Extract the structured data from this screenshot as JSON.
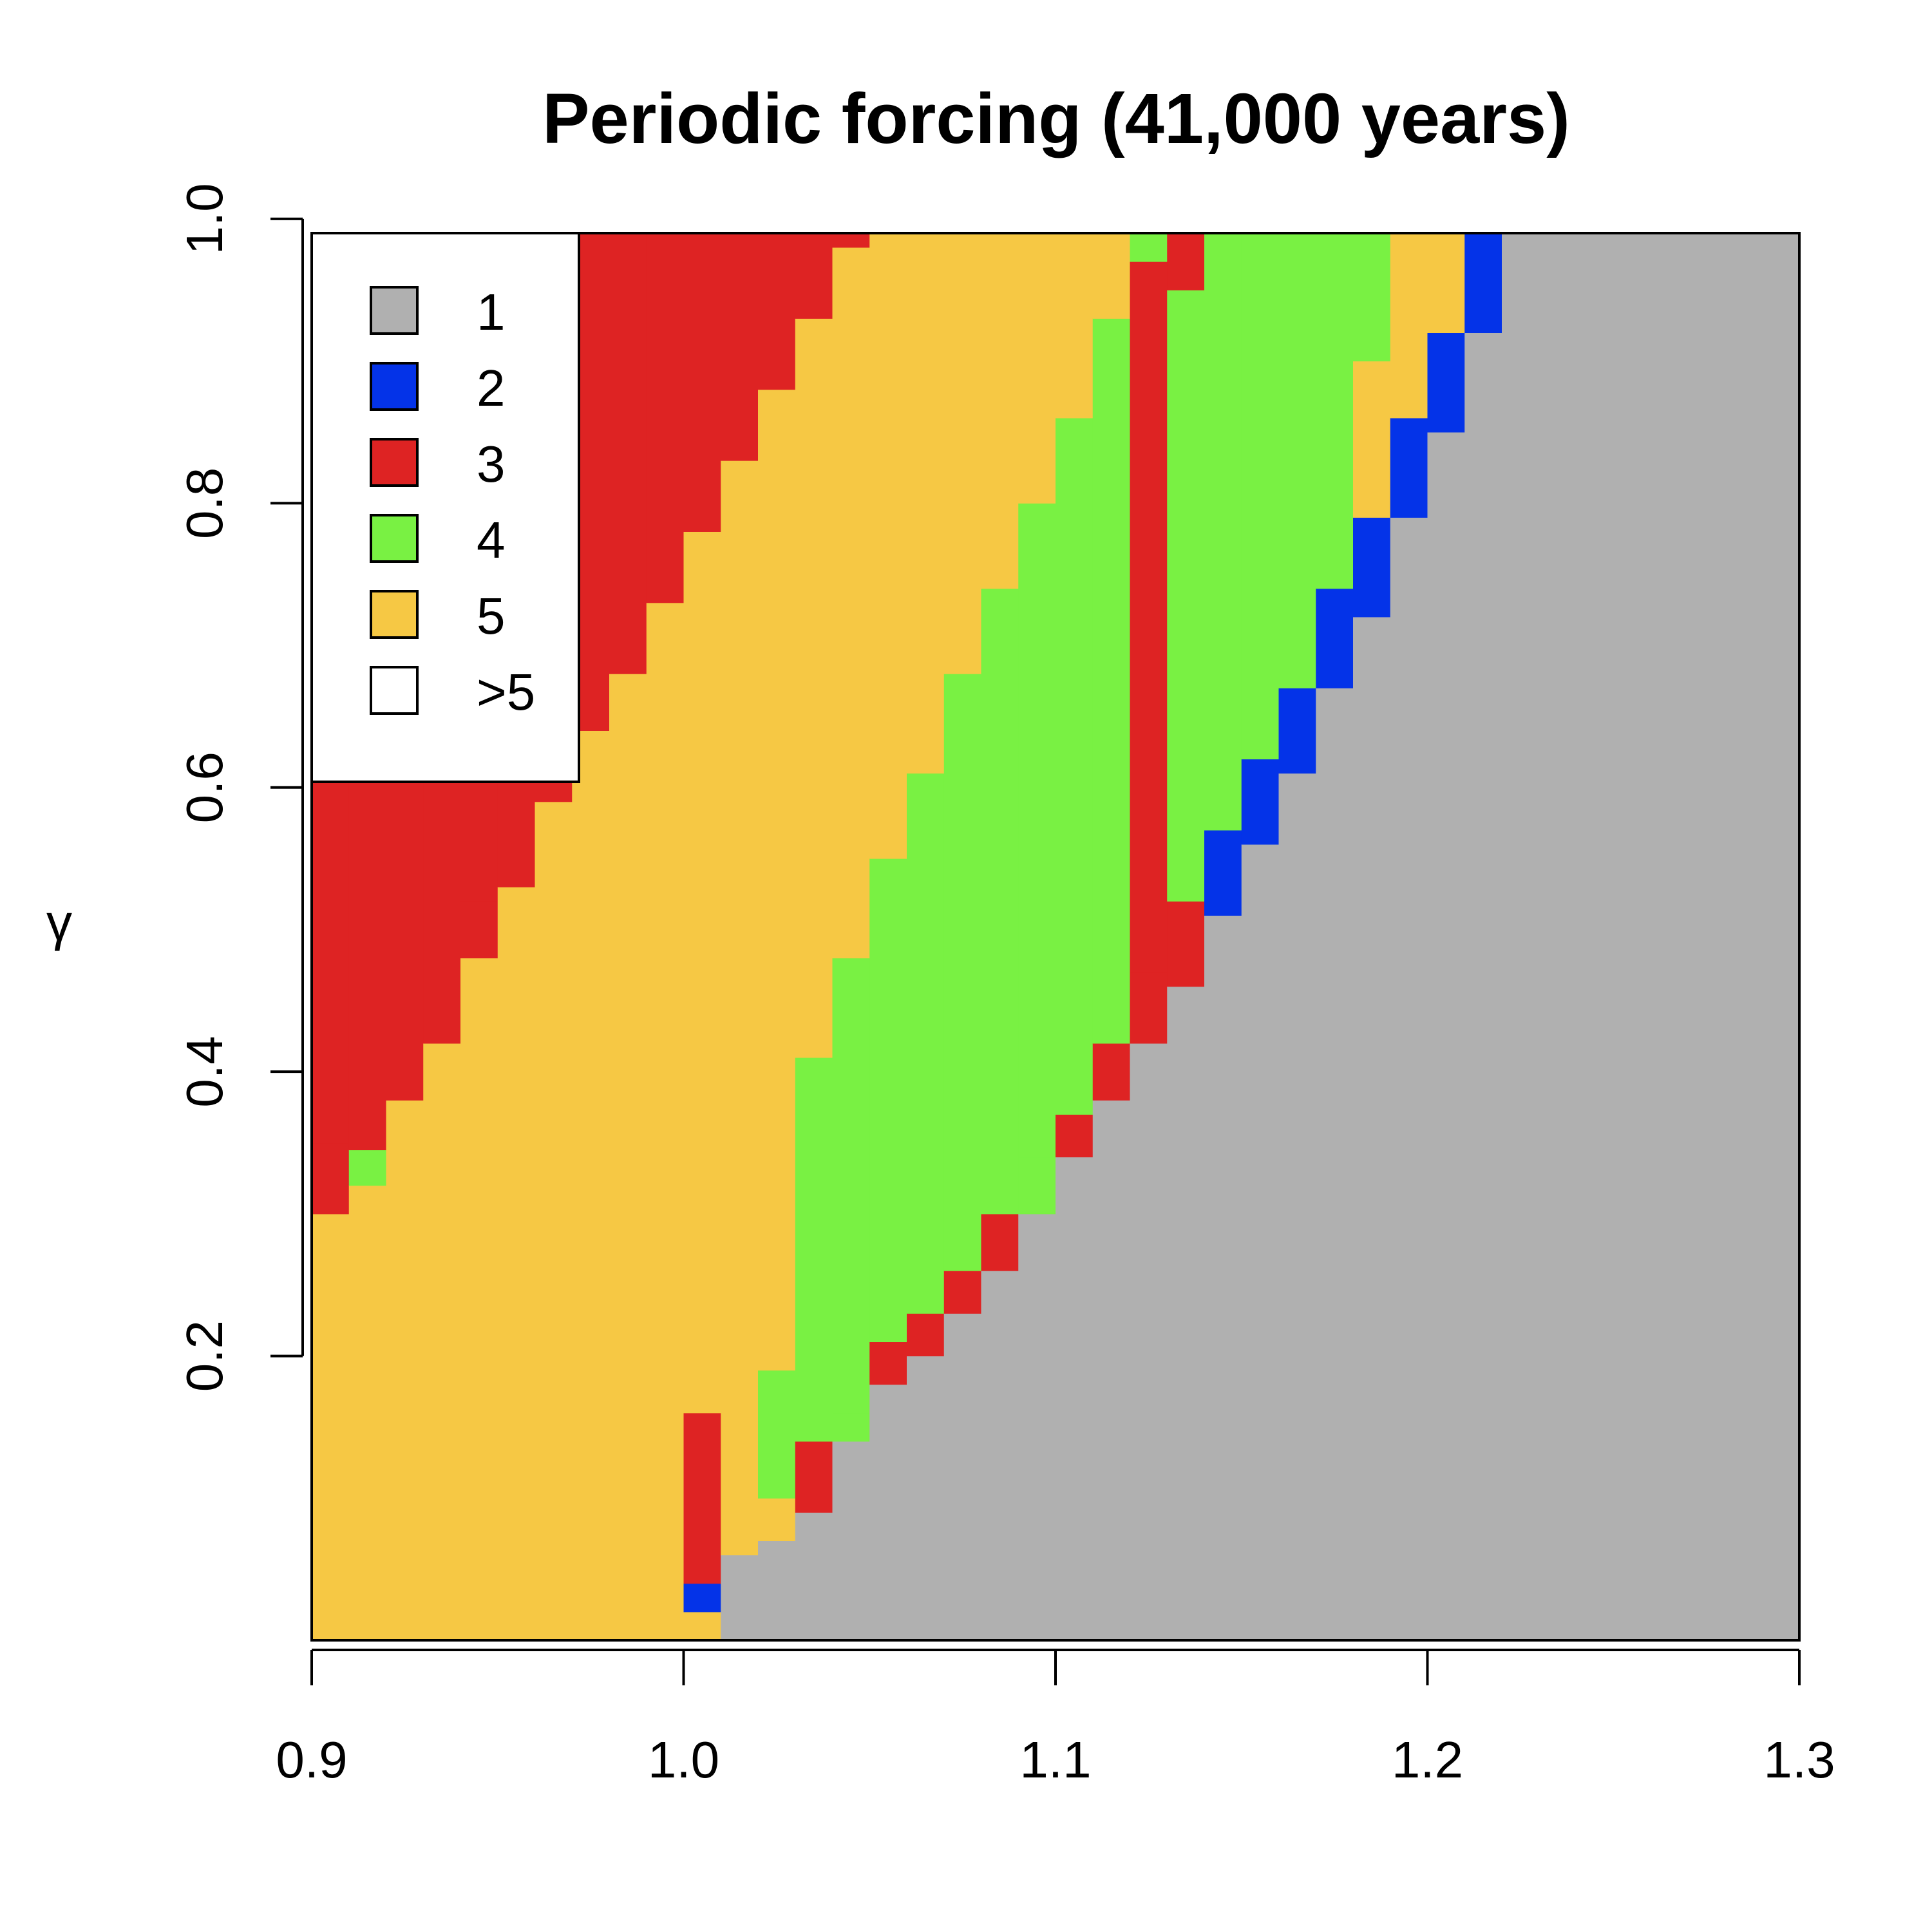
{
  "chart_data": {
    "type": "heatmap",
    "title": "Periodic forcing (41,000 years)",
    "xlabel": "",
    "ylabel": "γ",
    "xlim": [
      0.9,
      1.3
    ],
    "ylim": [
      0.0,
      1.0
    ],
    "x_ticks": [
      "0.9",
      "1.0",
      "1.1",
      "1.2",
      "1.3"
    ],
    "y_ticks": [
      "0.2",
      "0.4",
      "0.6",
      "0.8",
      "1.0"
    ],
    "legend_position": "top-left",
    "legend": [
      {
        "label": "1",
        "color": "#b0b0b0"
      },
      {
        "label": "2",
        "color": "#0433e8"
      },
      {
        "label": "3",
        "color": "#de2323"
      },
      {
        "label": "4",
        "color": "#79f143"
      },
      {
        "label": "5",
        "color": "#f6c844"
      },
      {
        "label": ">5",
        "color": "#ffffff"
      }
    ],
    "column_width": 0.01,
    "columns": [
      {
        "x": 0.9,
        "bands": [
          [
            0.0,
            0.3,
            5
          ],
          [
            0.3,
            0.35,
            3
          ],
          [
            0.35,
            1.0,
            3
          ]
        ]
      },
      {
        "x": 0.91,
        "bands": [
          [
            0.0,
            0.32,
            5
          ],
          [
            0.32,
            0.345,
            4
          ],
          [
            0.345,
            1.0,
            3
          ]
        ]
      },
      {
        "x": 0.92,
        "bands": [
          [
            0.0,
            0.38,
            5
          ],
          [
            0.38,
            0.39,
            3
          ],
          [
            0.39,
            1.0,
            3
          ]
        ]
      },
      {
        "x": 0.93,
        "bands": [
          [
            0.0,
            0.42,
            5
          ],
          [
            0.42,
            0.46,
            3
          ],
          [
            0.46,
            1.0,
            3
          ]
        ]
      },
      {
        "x": 0.94,
        "bands": [
          [
            0.0,
            0.48,
            5
          ],
          [
            0.48,
            0.52,
            3
          ],
          [
            0.52,
            1.0,
            3
          ]
        ]
      },
      {
        "x": 0.95,
        "bands": [
          [
            0.0,
            0.53,
            5
          ],
          [
            0.53,
            1.0,
            3
          ]
        ]
      },
      {
        "x": 0.96,
        "bands": [
          [
            0.0,
            0.59,
            5
          ],
          [
            0.59,
            1.0,
            3
          ]
        ]
      },
      {
        "x": 0.97,
        "bands": [
          [
            0.0,
            0.64,
            5
          ],
          [
            0.64,
            1.0,
            3
          ]
        ]
      },
      {
        "x": 0.98,
        "bands": [
          [
            0.0,
            0.68,
            5
          ],
          [
            0.68,
            1.0,
            3
          ]
        ]
      },
      {
        "x": 0.99,
        "bands": [
          [
            0.0,
            0.73,
            5
          ],
          [
            0.73,
            1.0,
            3
          ]
        ]
      },
      {
        "x": 1.0,
        "bands": [
          [
            0.0,
            0.02,
            5
          ],
          [
            0.02,
            0.04,
            2
          ],
          [
            0.04,
            0.16,
            3
          ],
          [
            0.16,
            0.78,
            5
          ],
          [
            0.78,
            1.0,
            3
          ]
        ]
      },
      {
        "x": 1.01,
        "bands": [
          [
            0.0,
            0.06,
            1
          ],
          [
            0.06,
            0.83,
            5
          ],
          [
            0.83,
            1.0,
            3
          ]
        ]
      },
      {
        "x": 1.02,
        "bands": [
          [
            0.0,
            0.07,
            1
          ],
          [
            0.07,
            0.1,
            5
          ],
          [
            0.1,
            0.19,
            4
          ],
          [
            0.19,
            0.35,
            5
          ],
          [
            0.35,
            0.88,
            5
          ],
          [
            0.88,
            1.0,
            3
          ]
        ]
      },
      {
        "x": 1.03,
        "bands": [
          [
            0.0,
            0.09,
            1
          ],
          [
            0.09,
            0.14,
            3
          ],
          [
            0.14,
            0.41,
            4
          ],
          [
            0.41,
            0.43,
            5
          ],
          [
            0.43,
            0.93,
            5
          ],
          [
            0.93,
            1.0,
            3
          ]
        ]
      },
      {
        "x": 1.04,
        "bands": [
          [
            0.0,
            0.14,
            1
          ],
          [
            0.14,
            0.16,
            4
          ],
          [
            0.16,
            0.48,
            4
          ],
          [
            0.48,
            0.5,
            5
          ],
          [
            0.5,
            0.98,
            5
          ],
          [
            0.98,
            1.0,
            3
          ]
        ]
      },
      {
        "x": 1.05,
        "bands": [
          [
            0.0,
            0.18,
            1
          ],
          [
            0.18,
            0.21,
            3
          ],
          [
            0.21,
            0.55,
            4
          ],
          [
            0.55,
            0.57,
            5
          ],
          [
            0.57,
            1.0,
            5
          ]
        ]
      },
      {
        "x": 1.06,
        "bands": [
          [
            0.0,
            0.2,
            1
          ],
          [
            0.2,
            0.23,
            3
          ],
          [
            0.23,
            0.61,
            4
          ],
          [
            0.61,
            0.63,
            5
          ],
          [
            0.63,
            1.0,
            5
          ]
        ]
      },
      {
        "x": 1.07,
        "bands": [
          [
            0.0,
            0.23,
            1
          ],
          [
            0.23,
            0.26,
            3
          ],
          [
            0.26,
            0.68,
            4
          ],
          [
            0.68,
            0.7,
            5
          ],
          [
            0.7,
            1.0,
            5
          ]
        ]
      },
      {
        "x": 1.08,
        "bands": [
          [
            0.0,
            0.26,
            1
          ],
          [
            0.26,
            0.3,
            3
          ],
          [
            0.3,
            0.74,
            4
          ],
          [
            0.74,
            0.76,
            5
          ],
          [
            0.76,
            1.0,
            5
          ]
        ]
      },
      {
        "x": 1.09,
        "bands": [
          [
            0.0,
            0.3,
            1
          ],
          [
            0.3,
            0.34,
            4
          ],
          [
            0.34,
            0.8,
            4
          ],
          [
            0.8,
            0.82,
            5
          ],
          [
            0.82,
            1.0,
            5
          ]
        ]
      },
      {
        "x": 1.1,
        "bands": [
          [
            0.0,
            0.34,
            1
          ],
          [
            0.34,
            0.37,
            3
          ],
          [
            0.37,
            0.86,
            4
          ],
          [
            0.86,
            0.88,
            5
          ],
          [
            0.88,
            1.0,
            5
          ]
        ]
      },
      {
        "x": 1.11,
        "bands": [
          [
            0.0,
            0.38,
            1
          ],
          [
            0.38,
            0.42,
            3
          ],
          [
            0.42,
            0.93,
            4
          ],
          [
            0.93,
            0.95,
            5
          ],
          [
            0.95,
            1.0,
            5
          ]
        ]
      },
      {
        "x": 1.12,
        "bands": [
          [
            0.0,
            0.42,
            1
          ],
          [
            0.42,
            0.47,
            3
          ],
          [
            0.47,
            0.97,
            3
          ],
          [
            0.97,
            1.0,
            4
          ]
        ]
      },
      {
        "x": 1.13,
        "bands": [
          [
            0.0,
            0.46,
            1
          ],
          [
            0.46,
            0.52,
            3
          ],
          [
            0.52,
            0.95,
            4
          ],
          [
            0.95,
            1.0,
            3
          ]
        ]
      },
      {
        "x": 1.14,
        "bands": [
          [
            0.0,
            0.51,
            1
          ],
          [
            0.51,
            0.57,
            2
          ],
          [
            0.57,
            1.0,
            4
          ]
        ]
      },
      {
        "x": 1.15,
        "bands": [
          [
            0.0,
            0.56,
            1
          ],
          [
            0.56,
            0.62,
            2
          ],
          [
            0.62,
            1.0,
            4
          ]
        ]
      },
      {
        "x": 1.16,
        "bands": [
          [
            0.0,
            0.61,
            1
          ],
          [
            0.61,
            0.67,
            2
          ],
          [
            0.67,
            1.0,
            4
          ]
        ]
      },
      {
        "x": 1.17,
        "bands": [
          [
            0.0,
            0.67,
            1
          ],
          [
            0.67,
            0.74,
            2
          ],
          [
            0.74,
            1.0,
            4
          ]
        ]
      },
      {
        "x": 1.18,
        "bands": [
          [
            0.0,
            0.72,
            1
          ],
          [
            0.72,
            0.79,
            2
          ],
          [
            0.79,
            0.9,
            5
          ],
          [
            0.9,
            1.0,
            4
          ]
        ]
      },
      {
        "x": 1.19,
        "bands": [
          [
            0.0,
            0.79,
            1
          ],
          [
            0.79,
            0.86,
            2
          ],
          [
            0.86,
            1.0,
            5
          ]
        ]
      },
      {
        "x": 1.2,
        "bands": [
          [
            0.0,
            0.85,
            1
          ],
          [
            0.85,
            0.92,
            2
          ],
          [
            0.92,
            1.0,
            5
          ]
        ]
      },
      {
        "x": 1.21,
        "bands": [
          [
            0.0,
            0.92,
            1
          ],
          [
            0.92,
            0.99,
            2
          ],
          [
            0.99,
            1.0,
            3
          ]
        ]
      },
      {
        "x": 1.22,
        "bands": [
          [
            0.0,
            0.99,
            1
          ],
          [
            0.99,
            1.0,
            2
          ]
        ]
      },
      {
        "x": 1.23,
        "bands": [
          [
            0.0,
            1.0,
            1
          ]
        ]
      },
      {
        "x": 1.24,
        "bands": [
          [
            0.0,
            1.0,
            1
          ]
        ]
      },
      {
        "x": 1.25,
        "bands": [
          [
            0.0,
            1.0,
            1
          ]
        ]
      },
      {
        "x": 1.26,
        "bands": [
          [
            0.0,
            1.0,
            1
          ]
        ]
      },
      {
        "x": 1.27,
        "bands": [
          [
            0.0,
            1.0,
            1
          ]
        ]
      },
      {
        "x": 1.28,
        "bands": [
          [
            0.0,
            1.0,
            1
          ]
        ]
      },
      {
        "x": 1.29,
        "bands": [
          [
            0.0,
            1.0,
            1
          ]
        ]
      }
    ]
  }
}
